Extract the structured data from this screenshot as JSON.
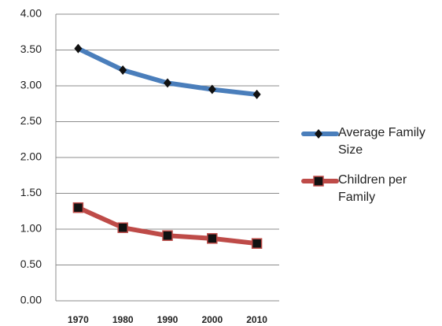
{
  "chart_data": {
    "type": "line",
    "categories": [
      "1970",
      "1980",
      "1990",
      "2000",
      "2010"
    ],
    "series": [
      {
        "name": "Average Family Size",
        "color": "#4a7ebb",
        "values": [
          3.52,
          3.22,
          3.04,
          2.95,
          2.88
        ]
      },
      {
        "name": "Children per Family",
        "color": "#be4b48",
        "values": [
          1.3,
          1.02,
          0.91,
          0.87,
          0.8
        ]
      }
    ],
    "ylim": [
      0,
      4
    ],
    "yticks": [
      {
        "value": 0,
        "label": "0.00"
      },
      {
        "value": 0.5,
        "label": "0.50"
      },
      {
        "value": 1,
        "label": "1.00"
      },
      {
        "value": 1.5,
        "label": "1.50"
      },
      {
        "value": 2,
        "label": "2.00"
      },
      {
        "value": 2.5,
        "label": "2.50"
      },
      {
        "value": 3,
        "label": "3.00"
      },
      {
        "value": 3.5,
        "label": "3.50"
      },
      {
        "value": 4,
        "label": "4.00"
      }
    ],
    "grid": true,
    "legend": "right"
  }
}
